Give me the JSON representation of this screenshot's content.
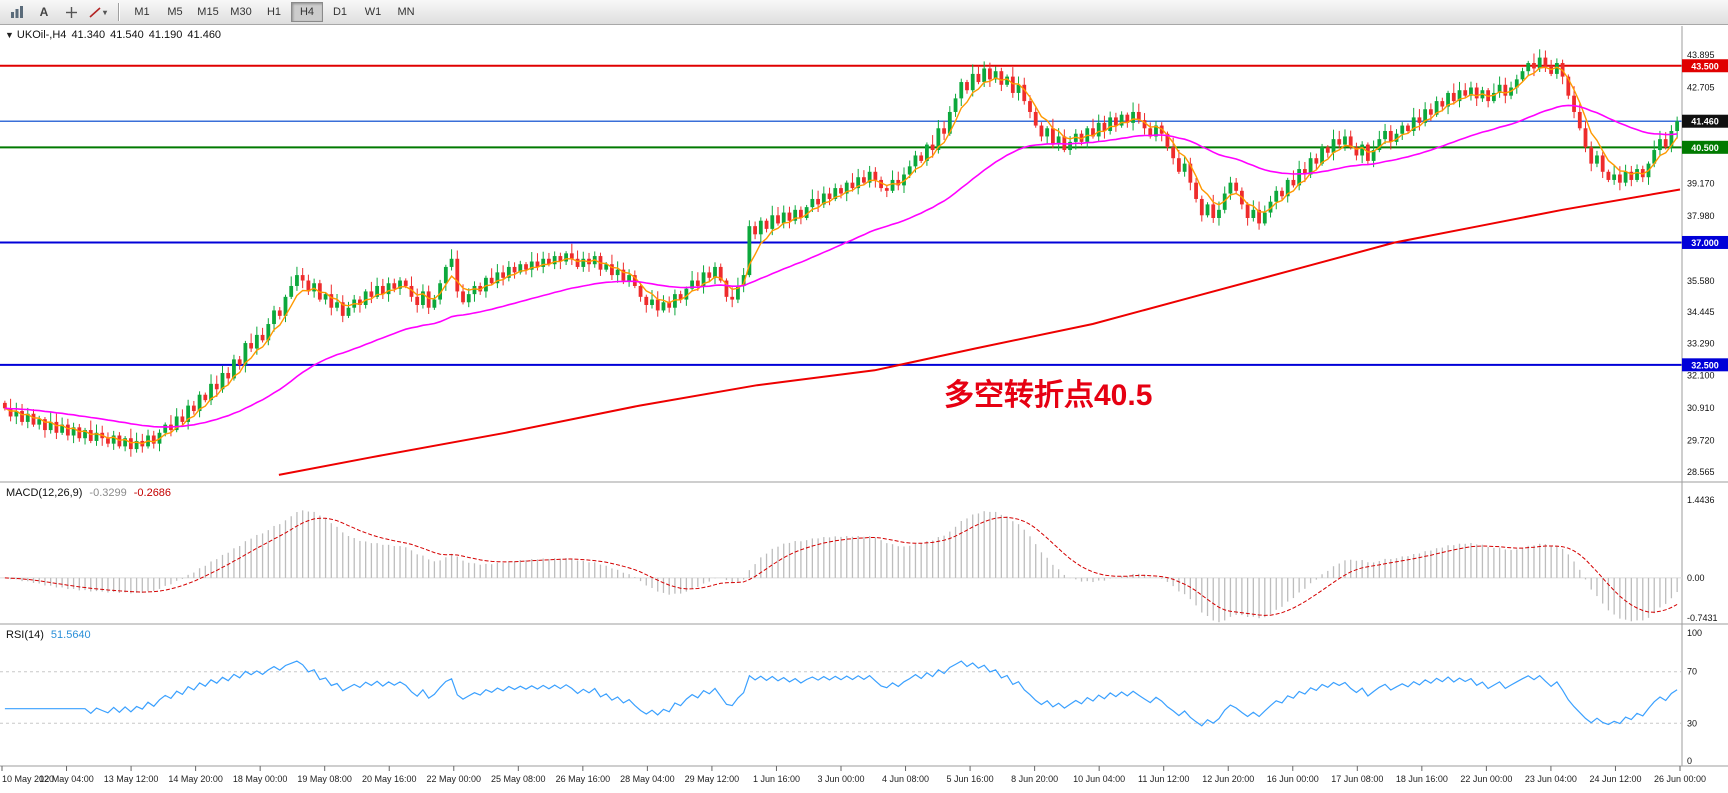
{
  "toolbar": {
    "text_tool_label": "A",
    "timeframes": [
      "M1",
      "M5",
      "M15",
      "M30",
      "H1",
      "H4",
      "D1",
      "W1",
      "MN"
    ],
    "active_timeframe": "H4"
  },
  "chart": {
    "symbol_header": {
      "collapse_glyph": "▼",
      "title": "UKOil-,H4",
      "open": "41.340",
      "high": "41.540",
      "low": "41.190",
      "close": "41.460"
    },
    "annotation": {
      "text": "多空转折点40.5",
      "color": "#e60012"
    },
    "axis_labels": [
      {
        "text": "43.895",
        "price": 43.895
      },
      {
        "text": "42.705",
        "price": 42.705
      },
      {
        "text": "39.170",
        "price": 39.17
      },
      {
        "text": "37.980",
        "price": 37.98
      },
      {
        "text": "35.580",
        "price": 35.58
      },
      {
        "text": "34.445",
        "price": 34.445
      },
      {
        "text": "33.290",
        "price": 33.29
      },
      {
        "text": "32.100",
        "price": 32.1
      },
      {
        "text": "30.910",
        "price": 30.91
      },
      {
        "text": "29.720",
        "price": 29.72
      },
      {
        "text": "28.565",
        "price": 28.565
      }
    ],
    "price_badges": [
      {
        "text": "43.500",
        "price": 43.5,
        "bg": "#e00000"
      },
      {
        "text": "41.460",
        "price": 41.46,
        "bg": "#101010"
      },
      {
        "text": "40.500",
        "price": 40.5,
        "bg": "#007a00"
      },
      {
        "text": "37.000",
        "price": 37.0,
        "bg": "#0000d8"
      },
      {
        "text": "32.500",
        "price": 32.5,
        "bg": "#0000d8"
      }
    ],
    "hlines": [
      {
        "price": 43.5,
        "color": "#e00000",
        "w": 2
      },
      {
        "price": 41.46,
        "color": "#3a6fd8",
        "w": 1.5
      },
      {
        "price": 40.5,
        "color": "#007a00",
        "w": 2
      },
      {
        "price": 37.0,
        "color": "#0000d8",
        "w": 2
      },
      {
        "price": 32.5,
        "color": "#0000d8",
        "w": 2
      }
    ]
  },
  "chart_data": {
    "type": "candlestick",
    "symbol": "UKOil-",
    "timeframe": "H4",
    "ylim": [
      28.3,
      44.3
    ],
    "visible_price_range": [
      28.565,
      43.895
    ],
    "first_open": 31.1,
    "up_color": "#0ca83c",
    "down_color": "#ee2c2c",
    "closes": [
      30.9,
      30.6,
      30.8,
      30.4,
      30.7,
      30.3,
      30.5,
      30.1,
      30.4,
      30.0,
      30.3,
      29.9,
      30.2,
      29.8,
      30.1,
      29.7,
      30.0,
      29.8,
      29.6,
      29.9,
      29.5,
      29.8,
      29.4,
      29.7,
      29.5,
      29.9,
      29.6,
      30.0,
      30.3,
      30.1,
      30.6,
      30.4,
      31.0,
      30.8,
      31.4,
      31.2,
      31.8,
      31.6,
      32.2,
      32.0,
      32.7,
      32.5,
      33.3,
      33.1,
      33.6,
      33.4,
      34.0,
      34.5,
      34.3,
      35.0,
      35.4,
      35.8,
      35.6,
      35.2,
      35.5,
      34.9,
      35.1,
      34.6,
      34.8,
      34.3,
      34.6,
      34.9,
      34.7,
      35.2,
      35.0,
      35.4,
      35.1,
      35.5,
      35.3,
      35.6,
      35.4,
      35.0,
      34.7,
      35.2,
      34.6,
      34.9,
      35.5,
      36.1,
      36.4,
      35.2,
      34.8,
      35.1,
      35.4,
      35.2,
      35.7,
      35.5,
      35.9,
      35.7,
      36.1,
      35.9,
      36.2,
      36.0,
      36.3,
      36.1,
      36.4,
      36.2,
      36.5,
      36.3,
      36.6,
      36.4,
      36.1,
      36.4,
      36.2,
      36.5,
      36.0,
      36.2,
      35.8,
      36.0,
      35.6,
      35.8,
      35.4,
      35.0,
      34.7,
      34.9,
      34.5,
      34.8,
      34.6,
      35.1,
      34.9,
      35.3,
      35.6,
      35.4,
      35.9,
      35.7,
      36.1,
      35.6,
      35.0,
      34.9,
      35.4,
      35.8,
      37.6,
      37.3,
      37.8,
      37.5,
      38.0,
      37.7,
      38.1,
      37.8,
      38.2,
      37.9,
      38.3,
      38.6,
      38.4,
      38.8,
      38.6,
      39.0,
      38.8,
      39.2,
      39.0,
      39.4,
      39.2,
      39.6,
      39.3,
      39.0,
      38.9,
      39.3,
      39.1,
      39.5,
      39.8,
      40.2,
      40.0,
      40.6,
      40.4,
      41.2,
      41.0,
      41.8,
      42.3,
      42.9,
      42.6,
      43.2,
      42.9,
      43.4,
      43.0,
      43.3,
      42.8,
      43.1,
      42.5,
      42.8,
      42.2,
      41.8,
      41.3,
      40.9,
      41.2,
      40.6,
      40.9,
      40.4,
      40.7,
      41.0,
      40.7,
      41.2,
      40.9,
      41.4,
      41.1,
      41.6,
      41.3,
      41.7,
      41.4,
      41.8,
      41.5,
      41.2,
      40.9,
      41.3,
      41.0,
      40.5,
      40.1,
      39.6,
      39.9,
      39.2,
      38.6,
      38.0,
      38.4,
      37.9,
      38.2,
      38.8,
      39.2,
      38.9,
      38.4,
      37.9,
      38.2,
      37.7,
      38.1,
      38.5,
      38.9,
      38.7,
      39.3,
      39.1,
      39.7,
      39.5,
      40.1,
      39.9,
      40.5,
      40.3,
      40.8,
      40.6,
      40.9,
      40.5,
      40.2,
      40.6,
      40.0,
      40.4,
      40.8,
      41.1,
      40.7,
      41.0,
      41.3,
      41.1,
      41.6,
      41.4,
      41.9,
      41.7,
      42.2,
      42.0,
      42.5,
      42.2,
      42.6,
      42.4,
      42.7,
      42.3,
      42.6,
      42.2,
      42.5,
      42.8,
      42.4,
      42.7,
      43.0,
      43.3,
      43.6,
      43.4,
      43.8,
      43.5,
      43.2,
      43.6,
      43.1,
      42.4,
      41.8,
      41.2,
      40.5,
      39.9,
      40.2,
      39.6,
      39.3,
      39.5,
      39.2,
      39.6,
      39.3,
      39.7,
      39.4,
      39.9,
      40.4,
      40.8,
      40.5,
      41.1,
      41.46
    ],
    "ma_lines": [
      {
        "name": "fast",
        "color": "#ff9900",
        "type": "ema",
        "period": 5,
        "width": 1.4
      },
      {
        "name": "mid",
        "color": "#ff00ff",
        "type": "ema",
        "period": 45,
        "width": 1.6
      },
      {
        "name": "slow",
        "color": "#ee0000",
        "type": "anchors",
        "width": 2,
        "points": [
          [
            0.165,
            28.45
          ],
          [
            0.22,
            29.1
          ],
          [
            0.3,
            30.0
          ],
          [
            0.38,
            31.0
          ],
          [
            0.45,
            31.75
          ],
          [
            0.52,
            32.3
          ],
          [
            0.58,
            33.1
          ],
          [
            0.65,
            34.0
          ],
          [
            0.71,
            35.0
          ],
          [
            0.77,
            36.0
          ],
          [
            0.83,
            37.0
          ],
          [
            0.88,
            37.6
          ],
          [
            0.93,
            38.2
          ],
          [
            1.0,
            38.95
          ]
        ]
      }
    ],
    "x_labels": [
      "10 May 2020",
      "12 May 04:00",
      "13 May 12:00",
      "14 May 20:00",
      "18 May 00:00",
      "19 May 08:00",
      "20 May 16:00",
      "22 May 00:00",
      "25 May 08:00",
      "26 May 16:00",
      "28 May 04:00",
      "29 May 12:00",
      "1 Jun 16:00",
      "3 Jun 00:00",
      "4 Jun 08:00",
      "5 Jun 16:00",
      "8 Jun 20:00",
      "10 Jun 04:00",
      "11 Jun 12:00",
      "12 Jun 20:00",
      "16 Jun 00:00",
      "17 Jun 08:00",
      "18 Jun 16:00",
      "22 Jun 00:00",
      "23 Jun 04:00",
      "24 Jun 12:00",
      "26 Jun 00:00"
    ]
  },
  "macd": {
    "label": "MACD(12,26,9)",
    "value_main": "-0.3299",
    "value_signal": "-0.2686",
    "fast": 12,
    "slow": 26,
    "signal": 9,
    "hist_color": "#bdbdbd",
    "signal_color": "#d40000",
    "axis": [
      {
        "text": "1.4436",
        "v": 1.4436
      },
      {
        "text": "0.00",
        "v": 0
      },
      {
        "text": "-0.7431",
        "v": -0.7431
      }
    ]
  },
  "rsi": {
    "label": "RSI(14)",
    "value": "51.5640",
    "period": 14,
    "line_color": "#3aa0ff",
    "levels": [
      70,
      30
    ],
    "axis": [
      {
        "text": "100",
        "v": 100
      },
      {
        "text": "70",
        "v": 70
      },
      {
        "text": "30",
        "v": 30
      },
      {
        "text": "0",
        "v": 0
      }
    ]
  }
}
